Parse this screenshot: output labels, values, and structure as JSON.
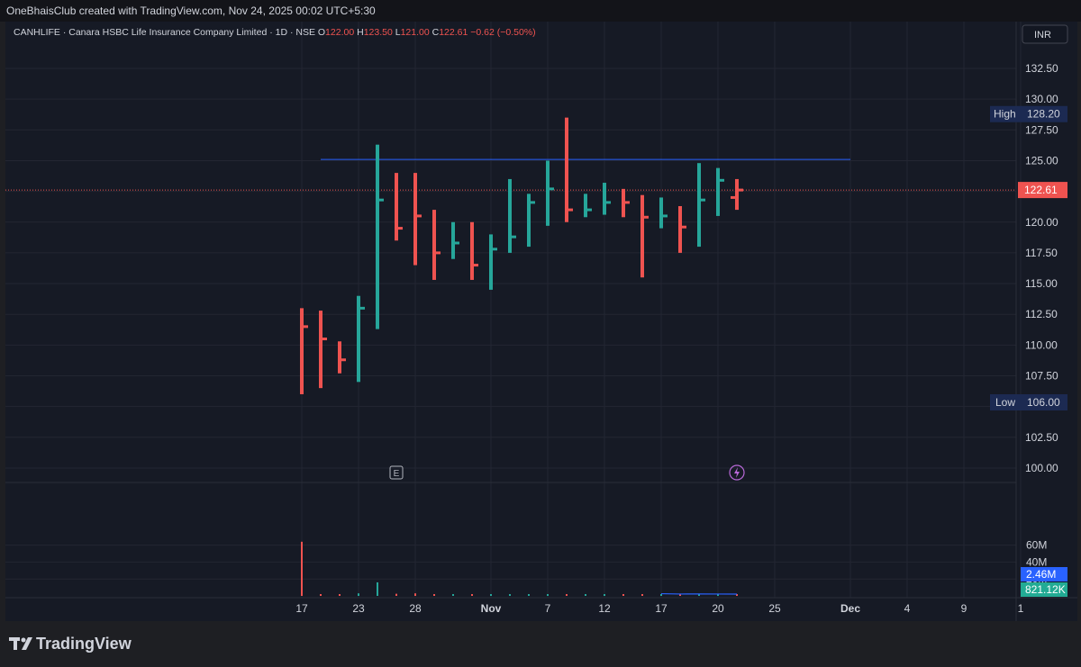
{
  "header": {
    "credit": "OneBhaisClub created with TradingView.com, Nov 24, 2025 00:02 UTC+5:30"
  },
  "legend": {
    "symbol": "CANHLIFE · Canara HSBC Life Insurance Company Limited · 1D · NSE",
    "o_label": "O",
    "o_value": "122.00",
    "h_label": "H",
    "h_value": "123.50",
    "l_label": "L",
    "l_value": "121.00",
    "c_label": "C",
    "c_value": "122.61",
    "change": "−0.62 (−0.50%)"
  },
  "currency": "INR",
  "colors": {
    "up": "#26a69a",
    "down": "#ef5350",
    "background": "#161a25",
    "grid": "#232632",
    "text": "#d1d4dc",
    "hline": "#2962ff",
    "volume_ma": "#2962ff"
  },
  "chart_data": {
    "type": "bar",
    "title": "CANHLIFE · Canara HSBC Life Insurance Company Limited · 1D · NSE",
    "price_axis": {
      "ticks": [
        "132.50",
        "130.00",
        "127.50",
        "125.00",
        "122.50",
        "120.00",
        "117.50",
        "115.00",
        "112.50",
        "110.00",
        "107.50",
        "105.00",
        "102.50",
        "100.00"
      ],
      "range": [
        98.5,
        135.5
      ]
    },
    "volume_axis": {
      "ticks": [
        "60M",
        "40M",
        "20M"
      ],
      "range": [
        0,
        70
      ]
    },
    "x_axis": {
      "ticks": [
        {
          "label": "17",
          "idx": 0
        },
        {
          "label": "23",
          "idx": 3
        },
        {
          "label": "28",
          "idx": 6
        },
        {
          "label": "Nov",
          "idx": 10
        },
        {
          "label": "7",
          "idx": 13
        },
        {
          "label": "12",
          "idx": 16
        },
        {
          "label": "17",
          "idx": 19
        },
        {
          "label": "20",
          "idx": 22
        },
        {
          "label": "25",
          "idx": 25
        },
        {
          "label": "Dec",
          "idx": 29
        },
        {
          "label": "4",
          "idx": 32
        },
        {
          "label": "9",
          "idx": 35
        },
        {
          "label": "1",
          "idx": 38
        }
      ]
    },
    "ohlc": [
      {
        "o": null,
        "h": 113.0,
        "l": 106.0,
        "c": 111.5,
        "up": false
      },
      {
        "o": null,
        "h": 112.8,
        "l": 106.5,
        "c": 110.5,
        "up": false
      },
      {
        "o": null,
        "h": 110.3,
        "l": 107.7,
        "c": 108.8,
        "up": false
      },
      {
        "o": null,
        "h": 114.0,
        "l": 107.0,
        "c": 113.0,
        "up": true
      },
      {
        "o": null,
        "h": 126.3,
        "l": 111.3,
        "c": 121.8,
        "up": true
      },
      {
        "o": null,
        "h": 124.0,
        "l": 118.5,
        "c": 119.5,
        "up": false
      },
      {
        "o": null,
        "h": 124.0,
        "l": 116.5,
        "c": 120.5,
        "up": false
      },
      {
        "o": null,
        "h": 121.0,
        "l": 115.3,
        "c": 117.5,
        "up": false
      },
      {
        "o": null,
        "h": 120.0,
        "l": 117.0,
        "c": 118.3,
        "up": true
      },
      {
        "o": null,
        "h": 120.0,
        "l": 115.3,
        "c": 116.5,
        "up": false
      },
      {
        "o": null,
        "h": 119.0,
        "l": 114.5,
        "c": 117.8,
        "up": true
      },
      {
        "o": null,
        "h": 123.5,
        "l": 117.5,
        "c": 118.8,
        "up": true
      },
      {
        "o": null,
        "h": 122.3,
        "l": 118.0,
        "c": 121.6,
        "up": true
      },
      {
        "o": null,
        "h": 125.0,
        "l": 119.7,
        "c": 122.7,
        "up": true
      },
      {
        "o": null,
        "h": 128.5,
        "l": 120.0,
        "c": 121.0,
        "up": false
      },
      {
        "o": null,
        "h": 122.3,
        "l": 120.4,
        "c": 121.0,
        "up": true
      },
      {
        "o": null,
        "h": 123.2,
        "l": 120.6,
        "c": 121.6,
        "up": true
      },
      {
        "o": null,
        "h": 122.7,
        "l": 120.4,
        "c": 121.6,
        "up": false
      },
      {
        "o": null,
        "h": 122.2,
        "l": 115.5,
        "c": 120.4,
        "up": false
      },
      {
        "o": null,
        "h": 122.0,
        "l": 119.5,
        "c": 120.5,
        "up": true
      },
      {
        "o": null,
        "h": 121.3,
        "l": 117.5,
        "c": 119.6,
        "up": false
      },
      {
        "o": null,
        "h": 124.8,
        "l": 118.0,
        "c": 121.8,
        "up": true
      },
      {
        "o": null,
        "h": 124.4,
        "l": 120.5,
        "c": 123.4,
        "up": true
      },
      {
        "o": 122.0,
        "h": 123.5,
        "l": 121.0,
        "c": 122.61,
        "up": false
      }
    ],
    "volume_millions": [
      64,
      1.5,
      1,
      3,
      16,
      2.5,
      3,
      2,
      1,
      1,
      1,
      1,
      1,
      1,
      1,
      1,
      1,
      1,
      1,
      1,
      1,
      1,
      1,
      0.8
    ],
    "high": {
      "label": "High",
      "value": "128.20"
    },
    "low": {
      "label": "Low",
      "value": "106.00"
    },
    "last_price": "122.61",
    "horizontal_line": {
      "value": 125.1,
      "from_idx": 1,
      "to_idx": 29
    },
    "volume_labels": {
      "ma": "2.46M",
      "last": "821.12K"
    },
    "volume_ma_millions": [
      null,
      null,
      null,
      null,
      null,
      null,
      null,
      null,
      null,
      null,
      null,
      null,
      null,
      null,
      null,
      null,
      null,
      null,
      null,
      2.6,
      2.2,
      2.3,
      2.2,
      2.1
    ],
    "markers": [
      {
        "type": "earnings",
        "label": "E",
        "idx": 5
      },
      {
        "type": "dividend",
        "icon": "lightning-icon",
        "idx": 23
      }
    ]
  },
  "branding": {
    "logo_text": "TradingView"
  }
}
